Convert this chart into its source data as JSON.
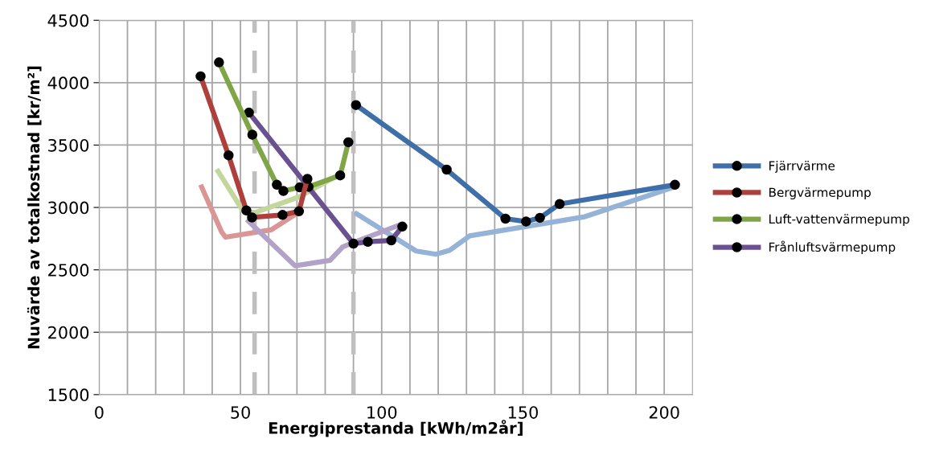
{
  "chart_data": {
    "type": "line",
    "xlabel": "Energiprestanda [kWh/m2år]",
    "ylabel": "Nuvärde av totalkostnad [kr/m²]",
    "xlim": [
      0,
      210
    ],
    "ylim": [
      1500,
      4500
    ],
    "xticks": [
      0,
      {
        "value": 10,
        "label": null
      },
      {
        "value": 20,
        "label": null
      },
      {
        "value": 30,
        "label": null
      },
      {
        "value": 40,
        "label": null
      },
      50,
      {
        "value": 60,
        "label": null
      },
      {
        "value": 70,
        "label": null
      },
      {
        "value": 80,
        "label": null
      },
      {
        "value": 90,
        "label": null
      },
      100,
      {
        "value": 110,
        "label": null
      },
      {
        "value": 120,
        "label": null
      },
      {
        "value": 130,
        "label": null
      },
      {
        "value": 140,
        "label": null
      },
      150,
      {
        "value": 160,
        "label": null
      },
      {
        "value": 170,
        "label": null
      },
      {
        "value": 180,
        "label": null
      },
      {
        "value": 190,
        "label": null
      },
      200
    ],
    "yticks": [
      1500,
      2000,
      2500,
      3000,
      3500,
      4000,
      4500
    ],
    "grid": true,
    "legend": "right",
    "ref_lines": [
      {
        "axis": "x",
        "value": 55,
        "color": "#bfbfbf",
        "line_style": "dashed"
      },
      {
        "axis": "x",
        "value": 90,
        "color": "#bfbfbf",
        "line_style": "dashed"
      }
    ],
    "series": [
      {
        "color": "#95b3d7",
        "marker": "none",
        "x": [
          90.4,
          100.2,
          112.2,
          119.2,
          124.1,
          131.1,
          171.9,
          203.8
        ],
        "values": [
          2959,
          2821,
          2651,
          2625,
          2657,
          2772,
          2926,
          3166
        ]
      },
      {
        "color": "#d99694",
        "marker": "none",
        "x": [
          35.9,
          43.3,
          44.7,
          60.9,
          70.0
        ],
        "values": [
          3182,
          2805,
          2762,
          2821,
          2953
        ]
      },
      {
        "color": "#c3d69b",
        "marker": "none",
        "x": [
          41.6,
          51.0,
          55.2,
          70.7,
          85.0
        ],
        "values": [
          3307,
          2969,
          2959,
          3084,
          3264
        ]
      },
      {
        "color": "#b3a2c7",
        "marker": "none",
        "x": [
          52.2,
          69.3,
          81.7,
          86.2,
          90.4,
          106.5
        ],
        "values": [
          2903,
          2533,
          2576,
          2684,
          2723,
          2861
        ]
      },
      {
        "name": "Fjärrvärme",
        "color": "#3f6fa8",
        "marker": "circle",
        "x": [
          90.9,
          123.0,
          143.8,
          151.1,
          156.0,
          163.0,
          203.8
        ],
        "values": [
          3821,
          3303,
          2910,
          2887,
          2917,
          3028,
          3182
        ]
      },
      {
        "name": "Bergvärmepump",
        "color": "#ad403c",
        "marker": "circle",
        "x": [
          35.9,
          45.8,
          52.1,
          54.1,
          64.9,
          70.7,
          73.7
        ],
        "values": [
          4051,
          3418,
          2976,
          2920,
          2940,
          2969,
          3229
        ]
      },
      {
        "name": "Luft-vattenvärmepump",
        "color": "#7fa546",
        "marker": "circle",
        "x": [
          42.4,
          54.2,
          62.9,
          65.2,
          71.0,
          74.1,
          85.3,
          88.2
        ],
        "values": [
          4163,
          3583,
          3182,
          3132,
          3161,
          3165,
          3257,
          3523
        ]
      },
      {
        "name": "Frånluftsvärmepump",
        "color": "#6a5190",
        "marker": "circle",
        "x": [
          53.0,
          90.0,
          95.1,
          103.4,
          107.3
        ],
        "values": [
          3760,
          2710,
          2725,
          2736,
          2847
        ]
      }
    ]
  }
}
